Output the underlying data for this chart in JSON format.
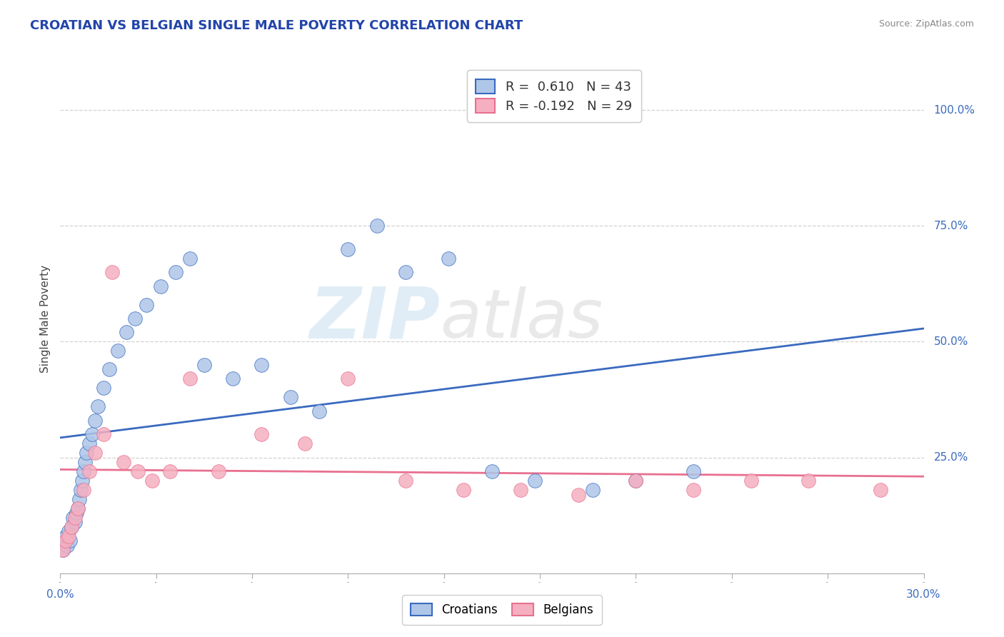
{
  "title": "CROATIAN VS BELGIAN SINGLE MALE POVERTY CORRELATION CHART",
  "source": "Source: ZipAtlas.com",
  "ylabel": "Single Male Poverty",
  "legend_croatians": "Croatians",
  "legend_belgians": "Belgians",
  "croatian_R": 0.61,
  "croatian_N": 43,
  "belgian_R": -0.192,
  "belgian_N": 29,
  "xlim": [
    0.0,
    30.0
  ],
  "ylim": [
    0.0,
    110.0
  ],
  "color_croatian": "#aec6e8",
  "color_belgian": "#f5afc0",
  "color_line_croatian": "#3a6abf",
  "color_line_belgian": "#e87090",
  "background_color": "#ffffff",
  "croatian_x": [
    0.1,
    0.2,
    0.25,
    0.3,
    0.35,
    0.4,
    0.45,
    0.5,
    0.55,
    0.6,
    0.65,
    0.7,
    0.75,
    0.8,
    0.85,
    0.9,
    1.0,
    1.1,
    1.2,
    1.3,
    1.5,
    1.7,
    2.0,
    2.3,
    2.6,
    3.0,
    3.5,
    4.0,
    4.5,
    5.0,
    6.0,
    7.0,
    8.0,
    9.0,
    10.0,
    11.0,
    12.0,
    13.5,
    15.0,
    16.5,
    18.5,
    20.0,
    22.0
  ],
  "croatian_y": [
    5,
    8,
    6,
    9,
    7,
    10,
    12,
    11,
    13,
    14,
    16,
    18,
    20,
    22,
    24,
    26,
    28,
    30,
    33,
    36,
    40,
    44,
    48,
    52,
    55,
    58,
    62,
    65,
    68,
    45,
    42,
    45,
    38,
    35,
    70,
    75,
    65,
    68,
    22,
    20,
    18,
    20,
    22
  ],
  "belgian_x": [
    0.1,
    0.2,
    0.3,
    0.4,
    0.5,
    0.6,
    0.8,
    1.0,
    1.2,
    1.5,
    1.8,
    2.2,
    2.7,
    3.2,
    3.8,
    4.5,
    5.5,
    7.0,
    8.5,
    10.0,
    12.0,
    14.0,
    16.0,
    18.0,
    20.0,
    22.0,
    24.0,
    26.0,
    28.5
  ],
  "belgian_y": [
    5,
    7,
    8,
    10,
    12,
    14,
    18,
    22,
    26,
    30,
    65,
    24,
    22,
    20,
    22,
    42,
    22,
    30,
    28,
    42,
    20,
    18,
    18,
    17,
    20,
    18,
    20,
    20,
    18
  ]
}
